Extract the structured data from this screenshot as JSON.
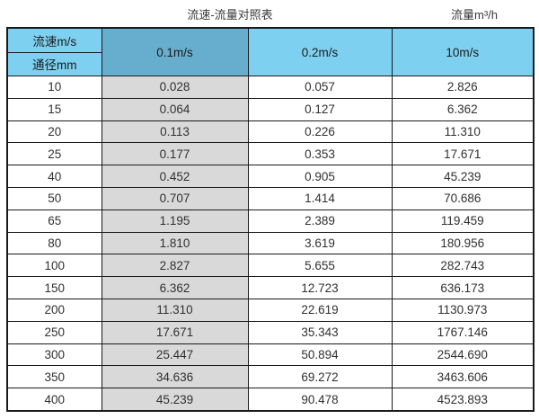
{
  "titles": {
    "main": "流速-流量对照表",
    "unit": "流量m³/h"
  },
  "table": {
    "header": {
      "velocity_label": "流速m/s",
      "diameter_label": "通径mm",
      "col_0_1": "0.1m/s",
      "col_0_2": "0.2m/s",
      "col_10": "10m/s"
    }
  },
  "colors": {
    "header_light": "#7dd0f0",
    "header_dark": "#67aece",
    "column_gray": "#d9d9d9",
    "border": "#1a1a1a"
  },
  "chart_data": {
    "type": "table",
    "title": "流速-流量对照表",
    "unit_label": "流量m³/h",
    "columns": [
      "通径mm",
      "0.1m/s",
      "0.2m/s",
      "10m/s"
    ],
    "highlighted_column": "0.1m/s",
    "rows": [
      [
        "10",
        "0.028",
        "0.057",
        "2.826"
      ],
      [
        "15",
        "0.064",
        "0.127",
        "6.362"
      ],
      [
        "20",
        "0.113",
        "0.226",
        "11.310"
      ],
      [
        "25",
        "0.177",
        "0.353",
        "17.671"
      ],
      [
        "40",
        "0.452",
        "0.905",
        "45.239"
      ],
      [
        "50",
        "0.707",
        "1.414",
        "70.686"
      ],
      [
        "65",
        "1.195",
        "2.389",
        "119.459"
      ],
      [
        "80",
        "1.810",
        "3.619",
        "180.956"
      ],
      [
        "100",
        "2.827",
        "5.655",
        "282.743"
      ],
      [
        "150",
        "6.362",
        "12.723",
        "636.173"
      ],
      [
        "200",
        "11.310",
        "22.619",
        "1130.973"
      ],
      [
        "250",
        "17.671",
        "35.343",
        "1767.146"
      ],
      [
        "300",
        "25.447",
        "50.894",
        "2544.690"
      ],
      [
        "350",
        "34.636",
        "69.272",
        "3463.606"
      ],
      [
        "400",
        "45.239",
        "90.478",
        "4523.893"
      ]
    ]
  }
}
